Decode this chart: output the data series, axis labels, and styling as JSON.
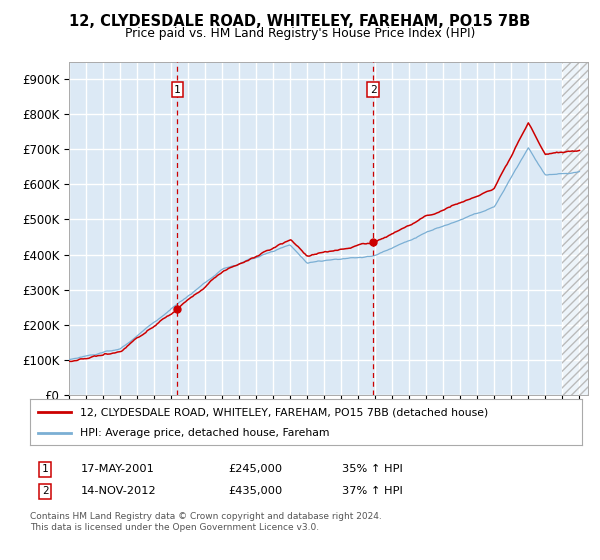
{
  "title": "12, CLYDESDALE ROAD, WHITELEY, FAREHAM, PO15 7BB",
  "subtitle": "Price paid vs. HM Land Registry's House Price Index (HPI)",
  "ylim": [
    0,
    950000
  ],
  "yticks": [
    0,
    100000,
    200000,
    300000,
    400000,
    500000,
    600000,
    700000,
    800000,
    900000
  ],
  "ytick_labels": [
    "£0",
    "£100K",
    "£200K",
    "£300K",
    "£400K",
    "£500K",
    "£600K",
    "£700K",
    "£800K",
    "£900K"
  ],
  "background_color": "#dce9f5",
  "grid_color": "#ffffff",
  "hpi_color": "#7bafd4",
  "price_color": "#cc0000",
  "marker1_x": 2001.37,
  "marker1_price": 245000,
  "marker2_x": 2012.87,
  "marker2_price": 435000,
  "legend_line1": "12, CLYDESDALE ROAD, WHITELEY, FAREHAM, PO15 7BB (detached house)",
  "legend_line2": "HPI: Average price, detached house, Fareham",
  "footnote": "Contains HM Land Registry data © Crown copyright and database right 2024.\nThis data is licensed under the Open Government Licence v3.0.",
  "table_row1": [
    "1",
    "17-MAY-2001",
    "£245,000",
    "35% ↑ HPI"
  ],
  "table_row2": [
    "2",
    "14-NOV-2012",
    "£435,000",
    "37% ↑ HPI"
  ]
}
